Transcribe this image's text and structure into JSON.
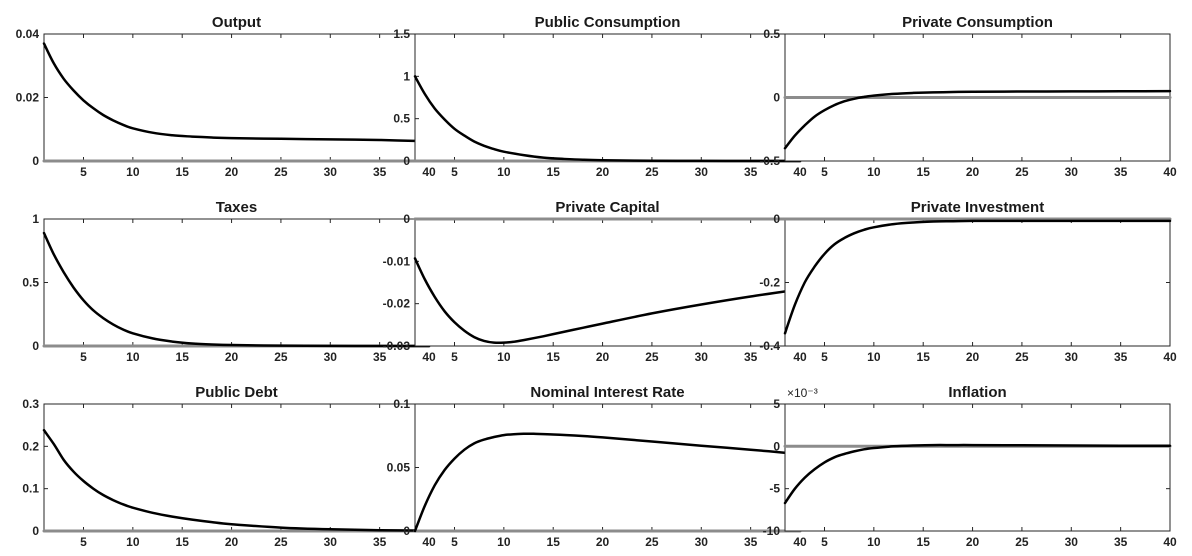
{
  "figure": {
    "colors": {
      "response": "#000000",
      "zero_line": "#8c8c8c",
      "axes": "#262626"
    }
  },
  "chart_data": [
    {
      "type": "line",
      "title": "Output",
      "xlim": [
        1,
        40
      ],
      "ylim": [
        0,
        0.04
      ],
      "xticks": [
        5,
        10,
        15,
        20,
        25,
        30,
        35,
        40
      ],
      "xtick_labels": [
        "5",
        "10",
        "15",
        "20",
        "25",
        "30",
        "35",
        "40"
      ],
      "yticks": [
        0,
        0.02,
        0.04
      ],
      "ytick_labels": [
        "0",
        "0.02",
        "0.04"
      ],
      "exponent": "",
      "series": [
        {
          "x": [
            1,
            2,
            3,
            4,
            5,
            6,
            7,
            8,
            9,
            10,
            12,
            14,
            16,
            18,
            20,
            25,
            30,
            35,
            40
          ],
          "values": [
            0.037,
            0.0307,
            0.0259,
            0.0222,
            0.0191,
            0.0166,
            0.0145,
            0.0128,
            0.0114,
            0.0103,
            0.0089,
            0.0081,
            0.0077,
            0.0074,
            0.0072,
            0.007,
            0.0068,
            0.0066,
            0.0062
          ]
        },
        {
          "x": [
            1,
            40
          ],
          "values": [
            0,
            0
          ]
        }
      ]
    },
    {
      "type": "line",
      "title": "Public Consumption",
      "xlim": [
        1,
        40
      ],
      "ylim": [
        0,
        1.5
      ],
      "xticks": [
        5,
        10,
        15,
        20,
        25,
        30,
        35,
        40
      ],
      "xtick_labels": [
        "5",
        "10",
        "15",
        "20",
        "25",
        "30",
        "35",
        "40"
      ],
      "yticks": [
        0,
        0.5,
        1,
        1.5
      ],
      "ytick_labels": [
        "0",
        "0.5",
        "1",
        "1.5"
      ],
      "exponent": "",
      "series": [
        {
          "x": [
            1,
            2,
            3,
            4,
            5,
            6,
            7,
            8,
            9,
            10,
            12,
            14,
            16,
            18,
            20,
            25,
            30,
            35,
            40
          ],
          "values": [
            1.0,
            0.79,
            0.62,
            0.49,
            0.38,
            0.3,
            0.23,
            0.18,
            0.14,
            0.11,
            0.07,
            0.04,
            0.025,
            0.015,
            0.009,
            0.003,
            0.001,
            0.0,
            0.0
          ]
        },
        {
          "x": [
            1,
            40
          ],
          "values": [
            0,
            0
          ]
        }
      ]
    },
    {
      "type": "line",
      "title": "Private Consumption",
      "xlim": [
        1,
        40
      ],
      "ylim": [
        -0.5,
        0.5
      ],
      "xticks": [
        5,
        10,
        15,
        20,
        25,
        30,
        35,
        40
      ],
      "xtick_labels": [
        "5",
        "10",
        "15",
        "20",
        "25",
        "30",
        "35",
        "40"
      ],
      "yticks": [
        -0.5,
        0,
        0.5
      ],
      "ytick_labels": [
        "-0.5",
        "0",
        "0.5"
      ],
      "exponent": "",
      "series": [
        {
          "x": [
            1,
            2,
            3,
            4,
            5,
            6,
            7,
            8,
            9,
            10,
            12,
            14,
            16,
            18,
            20,
            25,
            30,
            35,
            40
          ],
          "values": [
            -0.4,
            -0.3,
            -0.22,
            -0.15,
            -0.1,
            -0.06,
            -0.03,
            -0.01,
            0.005,
            0.015,
            0.028,
            0.036,
            0.04,
            0.043,
            0.045,
            0.047,
            0.048,
            0.049,
            0.05
          ]
        },
        {
          "x": [
            1,
            40
          ],
          "values": [
            0,
            0
          ]
        }
      ]
    },
    {
      "type": "line",
      "title": "Taxes",
      "xlim": [
        1,
        40
      ],
      "ylim": [
        0,
        1
      ],
      "xticks": [
        5,
        10,
        15,
        20,
        25,
        30,
        35,
        40
      ],
      "xtick_labels": [
        "5",
        "10",
        "15",
        "20",
        "25",
        "30",
        "35",
        "40"
      ],
      "yticks": [
        0,
        0.5,
        1
      ],
      "ytick_labels": [
        "0",
        "0.5",
        "1"
      ],
      "exponent": "",
      "series": [
        {
          "x": [
            1,
            2,
            3,
            4,
            5,
            6,
            7,
            8,
            9,
            10,
            12,
            14,
            16,
            18,
            20,
            25,
            30,
            35,
            40
          ],
          "values": [
            0.89,
            0.72,
            0.58,
            0.46,
            0.36,
            0.28,
            0.22,
            0.17,
            0.13,
            0.1,
            0.06,
            0.035,
            0.02,
            0.012,
            0.008,
            0.003,
            0.001,
            0.0,
            0.0
          ]
        },
        {
          "x": [
            1,
            40
          ],
          "values": [
            0,
            0
          ]
        }
      ]
    },
    {
      "type": "line",
      "title": "Private Capital",
      "xlim": [
        1,
        40
      ],
      "ylim": [
        -0.03,
        0
      ],
      "xticks": [
        5,
        10,
        15,
        20,
        25,
        30,
        35,
        40
      ],
      "xtick_labels": [
        "5",
        "10",
        "15",
        "20",
        "25",
        "30",
        "35",
        "40"
      ],
      "yticks": [
        -0.03,
        -0.02,
        -0.01,
        0
      ],
      "ytick_labels": [
        "-0.03",
        "-0.02",
        "-0.01",
        "0"
      ],
      "exponent": "",
      "series": [
        {
          "x": [
            1,
            2,
            3,
            4,
            5,
            6,
            7,
            8,
            9,
            10,
            11,
            12,
            14,
            16,
            18,
            20,
            25,
            30,
            35,
            40
          ],
          "values": [
            -0.0093,
            -0.0143,
            -0.0184,
            -0.0218,
            -0.0244,
            -0.0264,
            -0.0279,
            -0.0288,
            -0.0292,
            -0.0292,
            -0.029,
            -0.0286,
            -0.0277,
            -0.0267,
            -0.0257,
            -0.0247,
            -0.0223,
            -0.0202,
            -0.0183,
            -0.0166
          ]
        },
        {
          "x": [
            1,
            40
          ],
          "values": [
            0,
            0
          ]
        }
      ]
    },
    {
      "type": "line",
      "title": "Private Investment",
      "xlim": [
        1,
        40
      ],
      "ylim": [
        -0.4,
        0
      ],
      "xticks": [
        5,
        10,
        15,
        20,
        25,
        30,
        35,
        40
      ],
      "xtick_labels": [
        "5",
        "10",
        "15",
        "20",
        "25",
        "30",
        "35",
        "40"
      ],
      "yticks": [
        -0.4,
        -0.2,
        0
      ],
      "ytick_labels": [
        "-0.4",
        "-0.2",
        "0"
      ],
      "exponent": "",
      "series": [
        {
          "x": [
            1,
            2,
            3,
            4,
            5,
            6,
            7,
            8,
            9,
            10,
            12,
            14,
            16,
            18,
            20,
            25,
            30,
            35,
            40
          ],
          "values": [
            -0.36,
            -0.27,
            -0.2,
            -0.15,
            -0.11,
            -0.08,
            -0.06,
            -0.045,
            -0.034,
            -0.026,
            -0.016,
            -0.011,
            -0.008,
            -0.007,
            -0.006,
            -0.006,
            -0.006,
            -0.006,
            -0.006
          ]
        },
        {
          "x": [
            1,
            40
          ],
          "values": [
            0,
            0
          ]
        }
      ]
    },
    {
      "type": "line",
      "title": "Public Debt",
      "xlim": [
        1,
        40
      ],
      "ylim": [
        0,
        0.3
      ],
      "xticks": [
        5,
        10,
        15,
        20,
        25,
        30,
        35,
        40
      ],
      "xtick_labels": [
        "5",
        "10",
        "15",
        "20",
        "25",
        "30",
        "35",
        "40"
      ],
      "yticks": [
        0,
        0.1,
        0.2,
        0.3
      ],
      "ytick_labels": [
        "0",
        "0.1",
        "0.2",
        "0.3"
      ],
      "exponent": "",
      "series": [
        {
          "x": [
            1,
            2,
            3,
            4,
            5,
            6,
            7,
            8,
            9,
            10,
            12,
            14,
            16,
            18,
            20,
            25,
            30,
            35,
            40
          ],
          "values": [
            0.238,
            0.205,
            0.168,
            0.14,
            0.118,
            0.1,
            0.085,
            0.073,
            0.063,
            0.055,
            0.043,
            0.034,
            0.027,
            0.021,
            0.016,
            0.008,
            0.004,
            0.002,
            0.001
          ]
        },
        {
          "x": [
            1,
            40
          ],
          "values": [
            0,
            0
          ]
        }
      ]
    },
    {
      "type": "line",
      "title": "Nominal Interest Rate",
      "xlim": [
        1,
        40
      ],
      "ylim": [
        0,
        0.1
      ],
      "xticks": [
        5,
        10,
        15,
        20,
        25,
        30,
        35,
        40
      ],
      "xtick_labels": [
        "5",
        "10",
        "15",
        "20",
        "25",
        "30",
        "35",
        "40"
      ],
      "yticks": [
        0,
        0.05,
        0.1
      ],
      "ytick_labels": [
        "0",
        "0.05",
        "0.1"
      ],
      "exponent": "",
      "series": [
        {
          "x": [
            1,
            2,
            3,
            4,
            5,
            6,
            7,
            8,
            9,
            10,
            11,
            12,
            13,
            15,
            18,
            20,
            25,
            30,
            35,
            40
          ],
          "values": [
            0.0,
            0.02,
            0.036,
            0.048,
            0.057,
            0.064,
            0.069,
            0.072,
            0.074,
            0.0755,
            0.0762,
            0.0765,
            0.0765,
            0.076,
            0.0748,
            0.0737,
            0.0705,
            0.0672,
            0.064,
            0.0605
          ]
        },
        {
          "x": [
            1,
            40
          ],
          "values": [
            0,
            0
          ]
        }
      ]
    },
    {
      "type": "line",
      "title": "Inflation",
      "xlim": [
        1,
        40
      ],
      "ylim": [
        -10,
        5
      ],
      "xticks": [
        5,
        10,
        15,
        20,
        25,
        30,
        35,
        40
      ],
      "xtick_labels": [
        "5",
        "10",
        "15",
        "20",
        "25",
        "30",
        "35",
        "40"
      ],
      "yticks": [
        -10,
        -5,
        0,
        5
      ],
      "ytick_labels": [
        "-10",
        "-5",
        "0",
        "5"
      ],
      "exponent": "×10⁻³",
      "series": [
        {
          "x": [
            1,
            2,
            3,
            4,
            5,
            6,
            7,
            8,
            9,
            10,
            12,
            14,
            16,
            18,
            20,
            25,
            30,
            35,
            40
          ],
          "values": [
            -6.7,
            -5.0,
            -3.7,
            -2.7,
            -1.9,
            -1.3,
            -0.9,
            -0.6,
            -0.35,
            -0.2,
            0.0,
            0.1,
            0.15,
            0.15,
            0.15,
            0.12,
            0.1,
            0.08,
            0.06
          ]
        },
        {
          "x": [
            1,
            40
          ],
          "values": [
            0,
            0
          ]
        }
      ]
    }
  ]
}
